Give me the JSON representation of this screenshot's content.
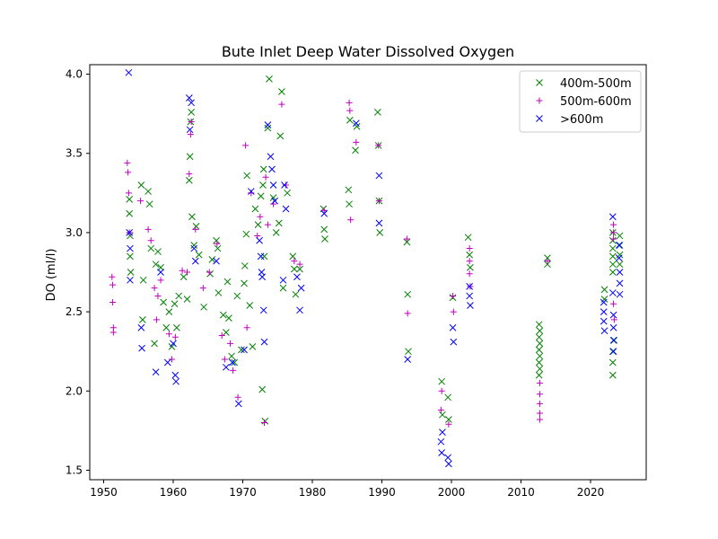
{
  "chart_data": {
    "type": "scatter",
    "title": "Bute Inlet Deep Water Dissolved Oxygen",
    "xlabel": "",
    "ylabel": "DO (ml/l)",
    "xlim": [
      1948,
      2028
    ],
    "ylim": [
      1.44,
      4.06
    ],
    "xticks": [
      1950,
      1960,
      1970,
      1980,
      1990,
      2000,
      2010,
      2020
    ],
    "yticks": [
      1.5,
      2.0,
      2.5,
      3.0,
      3.5,
      4.0
    ],
    "grid": false,
    "legend_position": "upper right",
    "series": [
      {
        "name": "400m-500m",
        "marker": "x",
        "color": "#008000",
        "points": [
          [
            1953.7,
            3.21
          ],
          [
            1953.7,
            3.12
          ],
          [
            1953.8,
            2.98
          ],
          [
            1953.8,
            2.85
          ],
          [
            1953.9,
            2.75
          ],
          [
            1955.4,
            3.3
          ],
          [
            1955.6,
            2.45
          ],
          [
            1955.7,
            2.7
          ],
          [
            1956.4,
            3.26
          ],
          [
            1956.6,
            3.18
          ],
          [
            1956.8,
            2.9
          ],
          [
            1957.3,
            2.3
          ],
          [
            1957.5,
            2.8
          ],
          [
            1957.8,
            2.88
          ],
          [
            1958.2,
            2.78
          ],
          [
            1958.6,
            2.56
          ],
          [
            1959.0,
            2.4
          ],
          [
            1959.4,
            2.5
          ],
          [
            1959.8,
            2.28
          ],
          [
            1960.2,
            2.55
          ],
          [
            1960.5,
            2.4
          ],
          [
            1960.8,
            2.6
          ],
          [
            1961.5,
            2.72
          ],
          [
            1962.0,
            2.58
          ],
          [
            1962.3,
            3.33
          ],
          [
            1962.4,
            3.48
          ],
          [
            1962.5,
            3.7
          ],
          [
            1962.6,
            3.76
          ],
          [
            1962.7,
            3.1
          ],
          [
            1963.0,
            2.92
          ],
          [
            1963.3,
            3.04
          ],
          [
            1963.7,
            2.86
          ],
          [
            1964.4,
            2.53
          ],
          [
            1965.3,
            2.74
          ],
          [
            1965.6,
            2.83
          ],
          [
            1966.2,
            2.95
          ],
          [
            1966.4,
            2.9
          ],
          [
            1966.5,
            2.62
          ],
          [
            1967.2,
            2.48
          ],
          [
            1967.6,
            2.37
          ],
          [
            1967.8,
            2.69
          ],
          [
            1968.0,
            2.46
          ],
          [
            1968.4,
            2.22
          ],
          [
            1968.8,
            2.18
          ],
          [
            1969.2,
            2.6
          ],
          [
            1969.8,
            2.26
          ],
          [
            1970.2,
            2.68
          ],
          [
            1970.3,
            2.79
          ],
          [
            1970.5,
            2.99
          ],
          [
            1970.6,
            3.36
          ],
          [
            1971.0,
            2.54
          ],
          [
            1971.4,
            2.28
          ],
          [
            1971.8,
            3.15
          ],
          [
            1972.2,
            3.05
          ],
          [
            1972.6,
            3.23
          ],
          [
            1972.8,
            2.01
          ],
          [
            1972.9,
            3.3
          ],
          [
            1973.0,
            3.4
          ],
          [
            1973.1,
            2.85
          ],
          [
            1973.2,
            1.81
          ],
          [
            1973.6,
            3.66
          ],
          [
            1973.8,
            3.97
          ],
          [
            1974.4,
            3.22
          ],
          [
            1974.8,
            3.0
          ],
          [
            1975.2,
            3.06
          ],
          [
            1975.4,
            3.61
          ],
          [
            1975.6,
            3.89
          ],
          [
            1975.8,
            2.65
          ],
          [
            1976.4,
            3.25
          ],
          [
            1977.2,
            2.85
          ],
          [
            1977.4,
            2.77
          ],
          [
            1977.6,
            2.61
          ],
          [
            1978.2,
            2.77
          ],
          [
            1981.6,
            3.15
          ],
          [
            1981.7,
            3.02
          ],
          [
            1981.8,
            2.96
          ],
          [
            1985.2,
            3.27
          ],
          [
            1985.3,
            3.18
          ],
          [
            1985.4,
            3.71
          ],
          [
            1986.2,
            3.52
          ],
          [
            1986.4,
            3.67
          ],
          [
            1989.4,
            3.76
          ],
          [
            1989.5,
            3.55
          ],
          [
            1989.6,
            3.2
          ],
          [
            1989.7,
            3.0
          ],
          [
            1993.6,
            2.94
          ],
          [
            1993.7,
            2.61
          ],
          [
            1993.8,
            2.25
          ],
          [
            1998.6,
            2.06
          ],
          [
            1998.7,
            1.85
          ],
          [
            1999.5,
            1.96
          ],
          [
            1999.6,
            1.82
          ],
          [
            2000.2,
            2.59
          ],
          [
            2002.4,
            2.97
          ],
          [
            2002.6,
            2.86
          ],
          [
            2002.7,
            2.78
          ],
          [
            2012.6,
            2.42
          ],
          [
            2012.6,
            2.34
          ],
          [
            2012.6,
            2.26
          ],
          [
            2012.6,
            2.18
          ],
          [
            2012.6,
            2.1
          ],
          [
            2012.7,
            2.38
          ],
          [
            2012.7,
            2.3
          ],
          [
            2012.7,
            2.22
          ],
          [
            2012.7,
            2.14
          ],
          [
            2013.8,
            2.84
          ],
          [
            2013.8,
            2.8
          ],
          [
            2022.0,
            2.64
          ],
          [
            2022.0,
            2.58
          ],
          [
            2023.2,
            3.0
          ],
          [
            2023.2,
            2.95
          ],
          [
            2023.2,
            2.9
          ],
          [
            2023.2,
            2.85
          ],
          [
            2023.2,
            2.8
          ],
          [
            2023.2,
            2.75
          ],
          [
            2023.2,
            2.25
          ],
          [
            2023.2,
            2.18
          ],
          [
            2023.2,
            2.1
          ],
          [
            2023.4,
            2.32
          ],
          [
            2024.2,
            2.98
          ],
          [
            2024.2,
            2.92
          ],
          [
            2024.2,
            2.86
          ],
          [
            2024.2,
            2.8
          ]
        ]
      },
      {
        "name": "500m-600m",
        "marker": "+",
        "color": "#bf00bf",
        "points": [
          [
            1951.2,
            2.72
          ],
          [
            1951.3,
            2.67
          ],
          [
            1951.3,
            2.56
          ],
          [
            1951.4,
            2.4
          ],
          [
            1951.4,
            2.37
          ],
          [
            1953.4,
            3.44
          ],
          [
            1953.5,
            3.38
          ],
          [
            1953.6,
            3.25
          ],
          [
            1953.7,
            3.0
          ],
          [
            1955.3,
            3.2
          ],
          [
            1956.4,
            3.02
          ],
          [
            1956.8,
            2.95
          ],
          [
            1957.3,
            2.65
          ],
          [
            1957.6,
            2.45
          ],
          [
            1957.8,
            2.6
          ],
          [
            1958.2,
            2.7
          ],
          [
            1959.4,
            2.36
          ],
          [
            1959.8,
            2.2
          ],
          [
            1960.3,
            2.34
          ],
          [
            1961.3,
            2.76
          ],
          [
            1962.0,
            2.75
          ],
          [
            1962.3,
            3.37
          ],
          [
            1962.5,
            3.62
          ],
          [
            1962.6,
            3.7
          ],
          [
            1963.2,
            3.02
          ],
          [
            1964.3,
            2.65
          ],
          [
            1965.2,
            2.75
          ],
          [
            1966.3,
            2.93
          ],
          [
            1967.0,
            2.35
          ],
          [
            1967.4,
            2.2
          ],
          [
            1968.2,
            2.3
          ],
          [
            1968.6,
            2.13
          ],
          [
            1969.3,
            1.96
          ],
          [
            1970.4,
            3.55
          ],
          [
            1970.6,
            2.4
          ],
          [
            1971.2,
            3.25
          ],
          [
            1972.1,
            2.98
          ],
          [
            1972.5,
            3.1
          ],
          [
            1973.1,
            1.8
          ],
          [
            1973.3,
            3.35
          ],
          [
            1973.6,
            3.05
          ],
          [
            1974.4,
            3.18
          ],
          [
            1975.6,
            3.81
          ],
          [
            1976.2,
            3.3
          ],
          [
            1977.4,
            2.82
          ],
          [
            1978.2,
            2.8
          ],
          [
            1981.7,
            3.14
          ],
          [
            1985.3,
            3.82
          ],
          [
            1985.4,
            3.77
          ],
          [
            1985.5,
            3.08
          ],
          [
            1986.3,
            3.57
          ],
          [
            1989.5,
            3.55
          ],
          [
            1989.6,
            3.2
          ],
          [
            1993.6,
            2.96
          ],
          [
            1993.7,
            2.49
          ],
          [
            1998.5,
            1.88
          ],
          [
            1998.6,
            2.0
          ],
          [
            1999.6,
            1.79
          ],
          [
            2000.2,
            2.6
          ],
          [
            2000.3,
            2.5
          ],
          [
            2002.6,
            2.9
          ],
          [
            2002.6,
            2.82
          ],
          [
            2002.6,
            2.74
          ],
          [
            2002.7,
            2.66
          ],
          [
            2012.7,
            2.05
          ],
          [
            2012.7,
            1.98
          ],
          [
            2012.7,
            1.92
          ],
          [
            2012.7,
            1.86
          ],
          [
            2012.7,
            1.82
          ],
          [
            2013.8,
            2.82
          ],
          [
            2023.3,
            3.05
          ],
          [
            2023.3,
            3.0
          ],
          [
            2023.3,
            2.96
          ],
          [
            2023.3,
            2.55
          ],
          [
            2023.4,
            2.45
          ]
        ]
      },
      {
        "name": ">600m",
        "marker": "x",
        "color": "#0000ff",
        "points": [
          [
            1953.6,
            4.01
          ],
          [
            1953.7,
            3.0
          ],
          [
            1953.8,
            2.9
          ],
          [
            1953.8,
            2.7
          ],
          [
            1955.4,
            2.4
          ],
          [
            1955.5,
            2.27
          ],
          [
            1957.5,
            2.12
          ],
          [
            1958.2,
            2.75
          ],
          [
            1959.2,
            2.18
          ],
          [
            1960.0,
            2.3
          ],
          [
            1960.3,
            2.1
          ],
          [
            1960.4,
            2.06
          ],
          [
            1962.3,
            3.85
          ],
          [
            1962.4,
            3.65
          ],
          [
            1962.6,
            3.82
          ],
          [
            1963.0,
            2.9
          ],
          [
            1963.2,
            2.82
          ],
          [
            1966.2,
            2.82
          ],
          [
            1967.6,
            2.15
          ],
          [
            1968.5,
            2.18
          ],
          [
            1969.4,
            1.92
          ],
          [
            1970.2,
            2.26
          ],
          [
            1971.2,
            3.26
          ],
          [
            1972.4,
            2.95
          ],
          [
            1972.6,
            2.85
          ],
          [
            1972.7,
            2.75
          ],
          [
            1972.8,
            2.72
          ],
          [
            1973.0,
            2.51
          ],
          [
            1973.1,
            2.31
          ],
          [
            1973.6,
            3.68
          ],
          [
            1974.0,
            3.48
          ],
          [
            1974.2,
            3.4
          ],
          [
            1974.4,
            3.3
          ],
          [
            1974.6,
            3.2
          ],
          [
            1975.8,
            2.7
          ],
          [
            1976.0,
            3.3
          ],
          [
            1976.2,
            3.15
          ],
          [
            1977.8,
            2.72
          ],
          [
            1978.2,
            2.51
          ],
          [
            1978.4,
            2.65
          ],
          [
            1981.7,
            3.12
          ],
          [
            1986.3,
            3.69
          ],
          [
            1989.6,
            3.36
          ],
          [
            1989.6,
            3.06
          ],
          [
            1993.7,
            2.2
          ],
          [
            1998.5,
            1.68
          ],
          [
            1998.6,
            1.61
          ],
          [
            1998.7,
            1.74
          ],
          [
            1999.5,
            1.58
          ],
          [
            1999.6,
            1.54
          ],
          [
            2000.2,
            2.4
          ],
          [
            2000.3,
            2.31
          ],
          [
            2002.6,
            2.66
          ],
          [
            2002.6,
            2.6
          ],
          [
            2002.7,
            2.54
          ],
          [
            2021.9,
            2.56
          ],
          [
            2021.9,
            2.5
          ],
          [
            2021.9,
            2.44
          ],
          [
            2022.0,
            2.38
          ],
          [
            2023.2,
            3.1
          ],
          [
            2023.2,
            2.62
          ],
          [
            2023.3,
            2.48
          ],
          [
            2023.3,
            2.4
          ],
          [
            2023.3,
            2.32
          ],
          [
            2023.3,
            2.25
          ],
          [
            2024.1,
            2.92
          ],
          [
            2024.1,
            2.84
          ],
          [
            2024.2,
            2.75
          ],
          [
            2024.2,
            2.68
          ],
          [
            2024.2,
            2.61
          ]
        ]
      }
    ]
  }
}
